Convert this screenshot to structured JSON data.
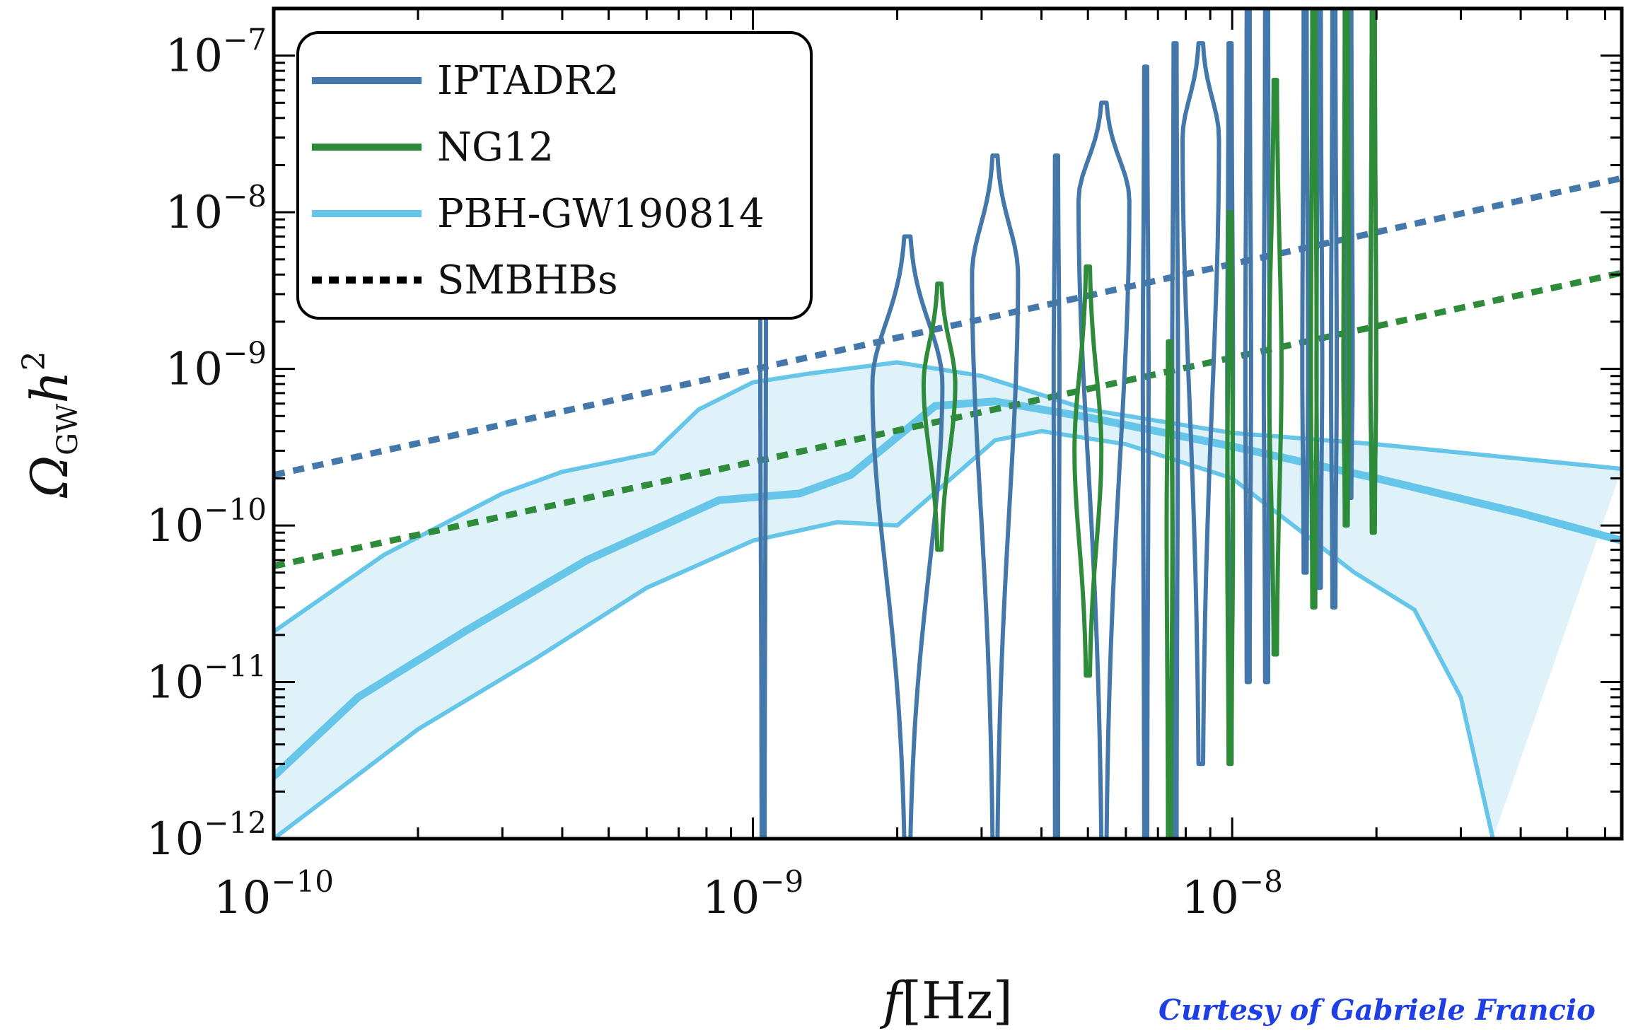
{
  "chart_data": {
    "type": "line",
    "xscale": "log",
    "yscale": "log",
    "xlim": [
      1e-10,
      6.5e-08
    ],
    "ylim": [
      1e-12,
      2e-07
    ],
    "xlabel_text": "f",
    "xlabel_unit": "[Hz]",
    "ylabel_base": "Ω",
    "ylabel_sub": "GW",
    "ylabel_tail": "h",
    "ylabel_sup": "2",
    "x_ticks": [
      {
        "value": 1e-10,
        "base": "10",
        "exp": "−10"
      },
      {
        "value": 1e-09,
        "base": "10",
        "exp": "−9"
      },
      {
        "value": 1e-08,
        "base": "10",
        "exp": "−8"
      }
    ],
    "y_ticks": [
      {
        "value": 1e-12,
        "base": "10",
        "exp": "−12"
      },
      {
        "value": 1e-11,
        "base": "10",
        "exp": "−11"
      },
      {
        "value": 1e-10,
        "base": "10",
        "exp": "−10"
      },
      {
        "value": 1e-09,
        "base": "10",
        "exp": "−9"
      },
      {
        "value": 1e-08,
        "base": "10",
        "exp": "−8"
      },
      {
        "value": 1e-07,
        "base": "10",
        "exp": "−7"
      }
    ],
    "legend_position": "top-left",
    "legend": [
      {
        "label": "IPTADR2",
        "color": "#4477aa",
        "style": "solid"
      },
      {
        "label": "NG12",
        "color": "#2e8b3a",
        "style": "solid"
      },
      {
        "label": "PBH-GW190814",
        "color": "#66c6ea",
        "style": "solid"
      },
      {
        "label": "SMBHBs",
        "color": "#000000",
        "style": "dotted"
      }
    ],
    "series": [
      {
        "name": "PBH-GW190814",
        "kind": "band",
        "color": "#66c6ea",
        "fill": "#dff2f9",
        "upper": [
          [
            1e-10,
            2.1e-11
          ],
          [
            1.7e-10,
            6.5e-11
          ],
          [
            3e-10,
            1.6e-10
          ],
          [
            4e-10,
            2.2e-10
          ],
          [
            6.2e-10,
            2.9e-10
          ],
          [
            7.7e-10,
            5.5e-10
          ],
          [
            1e-09,
            8.2e-10
          ],
          [
            1.3e-09,
            9.3e-10
          ],
          [
            2e-09,
            1.1e-09
          ],
          [
            3e-09,
            9e-10
          ],
          [
            5e-09,
            5.5e-10
          ],
          [
            1e-08,
            3.9e-10
          ],
          [
            2e-08,
            3.3e-10
          ],
          [
            6.5e-08,
            2.3e-10
          ]
        ],
        "median": [
          [
            1e-10,
            2.5e-12
          ],
          [
            1.5e-10,
            8e-12
          ],
          [
            2.5e-10,
            2.1e-11
          ],
          [
            4.5e-10,
            6e-11
          ],
          [
            8.5e-10,
            1.45e-10
          ],
          [
            1.25e-09,
            1.6e-10
          ],
          [
            1.6e-09,
            2.1e-10
          ],
          [
            2.4e-09,
            5.8e-10
          ],
          [
            3.2e-09,
            6.2e-10
          ],
          [
            5e-09,
            4.9e-10
          ],
          [
            1e-08,
            3.2e-10
          ],
          [
            2e-08,
            2e-10
          ],
          [
            4e-08,
            1.2e-10
          ],
          [
            6.5e-08,
            8e-11
          ]
        ],
        "lower": [
          [
            1e-10,
            1e-12
          ],
          [
            2e-10,
            5e-12
          ],
          [
            3.5e-10,
            1.4e-11
          ],
          [
            6e-10,
            4e-11
          ],
          [
            1e-09,
            8e-11
          ],
          [
            1.5e-09,
            1.05e-10
          ],
          [
            2e-09,
            1e-10
          ],
          [
            3.2e-09,
            3.5e-10
          ],
          [
            4e-09,
            4e-10
          ],
          [
            6e-09,
            3.3e-10
          ],
          [
            1e-08,
            2e-10
          ],
          [
            1.8e-08,
            5e-11
          ],
          [
            2.4e-08,
            2.9e-11
          ],
          [
            3e-08,
            8e-12
          ],
          [
            3.5e-08,
            1e-12
          ]
        ]
      },
      {
        "name": "SMBHBs",
        "kind": "powerlaw",
        "color": "#4477aa",
        "points": [
          [
            1e-10,
            2.1e-10
          ],
          [
            6.5e-08,
            1.65e-08
          ]
        ]
      },
      {
        "name": "SMBHBs",
        "kind": "powerlaw",
        "color": "#2e8b3a",
        "points": [
          [
            1e-10,
            5.5e-11
          ],
          [
            6.5e-08,
            4.1e-09
          ]
        ]
      },
      {
        "name": "IPTADR2",
        "kind": "violins",
        "color": "#4477aa",
        "violins": [
          {
            "f": 1.05e-09,
            "top": 4e-09,
            "bottom": 1e-12,
            "peak": 2e-09,
            "width": 0.003
          },
          {
            "f": 2.1e-09,
            "top": 7e-09,
            "bottom": 1e-12,
            "peak": 8e-10,
            "width": 0.07
          },
          {
            "f": 3.2e-09,
            "top": 2.3e-08,
            "bottom": 1e-12,
            "peak": 4e-09,
            "width": 0.045
          },
          {
            "f": 4.3e-09,
            "top": 2.3e-08,
            "bottom": 1e-12,
            "peak": 1e-09,
            "width": 0.003
          },
          {
            "f": 5.4e-09,
            "top": 5e-08,
            "bottom": 1e-12,
            "peak": 1.2e-08,
            "width": 0.05
          },
          {
            "f": 6.6e-09,
            "top": 8.5e-08,
            "bottom": 1e-12,
            "peak": 1e-09,
            "width": 0.003
          },
          {
            "f": 7.6e-09,
            "top": 1.2e-07,
            "bottom": 1e-12,
            "peak": 1e-09,
            "width": 0.003
          },
          {
            "f": 8.6e-09,
            "top": 1.2e-07,
            "bottom": 3e-12,
            "peak": 3e-08,
            "width": 0.035
          },
          {
            "f": 9.9e-09,
            "top": 1.2e-07,
            "bottom": 6e-12,
            "peak": 1e-09,
            "width": 0.003
          },
          {
            "f": 1.08e-08,
            "top": 2e-07,
            "bottom": 1e-11,
            "peak": 1e-09,
            "width": 0.003
          },
          {
            "f": 1.18e-08,
            "top": 2e-07,
            "bottom": 1e-11,
            "peak": 1e-09,
            "width": 0.003
          },
          {
            "f": 1.42e-08,
            "top": 2e-07,
            "bottom": 5e-11,
            "peak": 1e-09,
            "width": 0.003
          },
          {
            "f": 1.52e-08,
            "top": 2e-07,
            "bottom": 4e-11,
            "peak": 1e-09,
            "width": 0.003
          },
          {
            "f": 1.63e-08,
            "top": 2e-07,
            "bottom": 3e-11,
            "peak": 1e-09,
            "width": 0.003
          },
          {
            "f": 1.76e-08,
            "top": 2e-07,
            "bottom": 1.5e-10,
            "peak": 1e-09,
            "width": 0.003
          },
          {
            "f": 1.97e-08,
            "top": 2e-07,
            "bottom": 1e-10,
            "peak": 1e-09,
            "width": 0.003
          }
        ]
      },
      {
        "name": "NG12",
        "kind": "violins",
        "color": "#2e8b3a",
        "violins": [
          {
            "f": 2.45e-09,
            "top": 3.5e-09,
            "bottom": 7e-11,
            "peak": 8e-10,
            "width": 0.03
          },
          {
            "f": 5e-09,
            "top": 4.5e-09,
            "bottom": 1.1e-11,
            "peak": 3e-10,
            "width": 0.025
          },
          {
            "f": 7.4e-09,
            "top": 1.5e-09,
            "bottom": 1e-12,
            "peak": 1e-10,
            "width": 0.003
          },
          {
            "f": 9.9e-09,
            "top": 1e-08,
            "bottom": 3e-12,
            "peak": 1e-10,
            "width": 0.003
          },
          {
            "f": 1.23e-08,
            "top": 7e-08,
            "bottom": 1.5e-11,
            "peak": 1e-09,
            "width": 0.01
          },
          {
            "f": 1.48e-08,
            "top": 2e-07,
            "bottom": 3e-11,
            "peak": 1e-09,
            "width": 0.003
          },
          {
            "f": 1.73e-08,
            "top": 2e-07,
            "bottom": 1e-10,
            "peak": 1e-09,
            "width": 0.003
          },
          {
            "f": 1.97e-08,
            "top": 2e-07,
            "bottom": 9e-11,
            "peak": 1e-09,
            "width": 0.003
          }
        ]
      }
    ]
  },
  "credit": "Curtesy of Gabriele Francio"
}
